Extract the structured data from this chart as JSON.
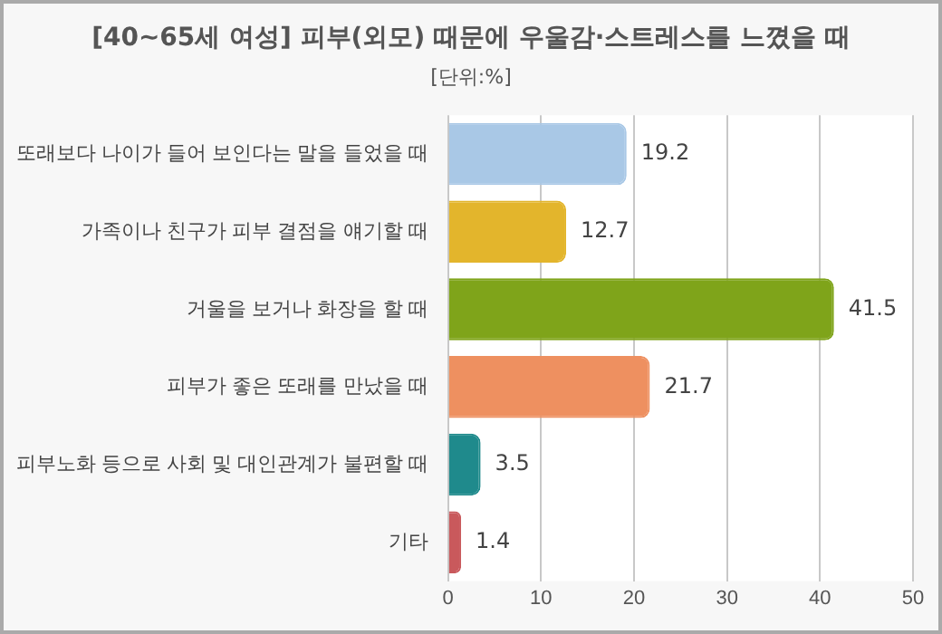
{
  "chart_data": {
    "type": "bar",
    "orientation": "horizontal",
    "title": "[40~65세 여성] 피부(외모) 때문에 우울감·스트레스를 느꼈을 때",
    "subtitle": "[단위:%]",
    "categories": [
      "또래보다 나이가 들어 보인다는 말을 들었을 때",
      "가족이나 친구가 피부 결점을 얘기할 때",
      "거울을 보거나 화장을 할 때",
      "피부가 좋은 또래를 만났을 때",
      "피부노화 등으로 사회 및 대인관계가 불편할 때",
      "기타"
    ],
    "values": [
      19.2,
      12.7,
      41.5,
      21.7,
      3.5,
      1.4
    ],
    "colors": [
      "#a9c8e6",
      "#e3b52c",
      "#7fa41a",
      "#ee9060",
      "#1f8a8c",
      "#c9595c"
    ],
    "xlim": [
      0,
      50
    ],
    "xticks": [
      0,
      10,
      20,
      30,
      40,
      50
    ],
    "grid": "x",
    "data_labels": true,
    "legend": false
  }
}
